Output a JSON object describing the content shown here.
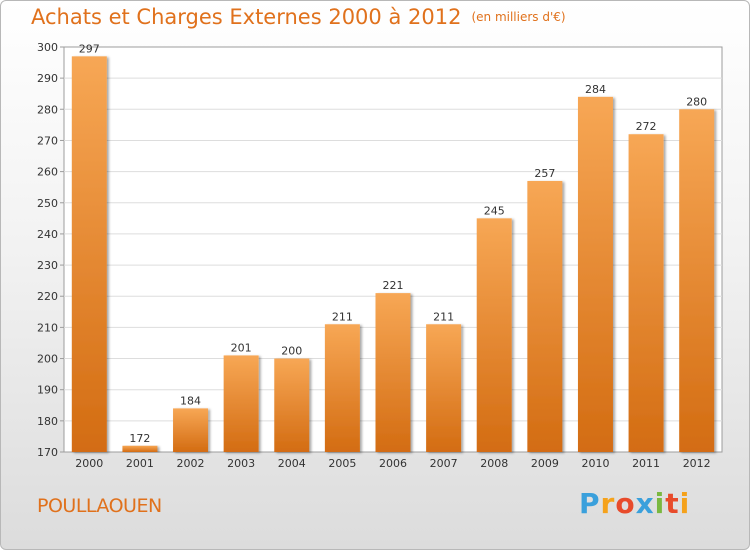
{
  "header": {
    "title": "Achats et Charges Externes 2000 à 2012",
    "unit": "(en milliers d'€)"
  },
  "footer": {
    "commune": "POULLAOUEN",
    "logo": {
      "letters": [
        "P",
        "r",
        "o",
        "x",
        "i",
        "t",
        "i"
      ],
      "colors": [
        "#3aa0dc",
        "#f5a21b",
        "#e84b2b",
        "#3aa0dc",
        "#7ab840",
        "#e84b2b",
        "#f5a21b"
      ]
    }
  },
  "colors": {
    "accent": "#e0711c",
    "bar_top": "#f7a755",
    "bar_bottom": "#d36c12"
  },
  "chart_data": {
    "type": "bar",
    "title": "Achats et Charges Externes 2000 à 2012",
    "subtitle": "(en milliers d'€)",
    "categories": [
      "2000",
      "2001",
      "2002",
      "2003",
      "2004",
      "2005",
      "2006",
      "2007",
      "2008",
      "2009",
      "2010",
      "2011",
      "2012"
    ],
    "values": [
      297,
      172,
      184,
      201,
      200,
      211,
      221,
      211,
      245,
      257,
      284,
      272,
      280
    ],
    "ylim": [
      170,
      300
    ],
    "yticks": [
      170,
      180,
      190,
      200,
      210,
      220,
      230,
      240,
      250,
      260,
      270,
      280,
      290,
      300
    ],
    "grid": true,
    "legend": "none"
  }
}
